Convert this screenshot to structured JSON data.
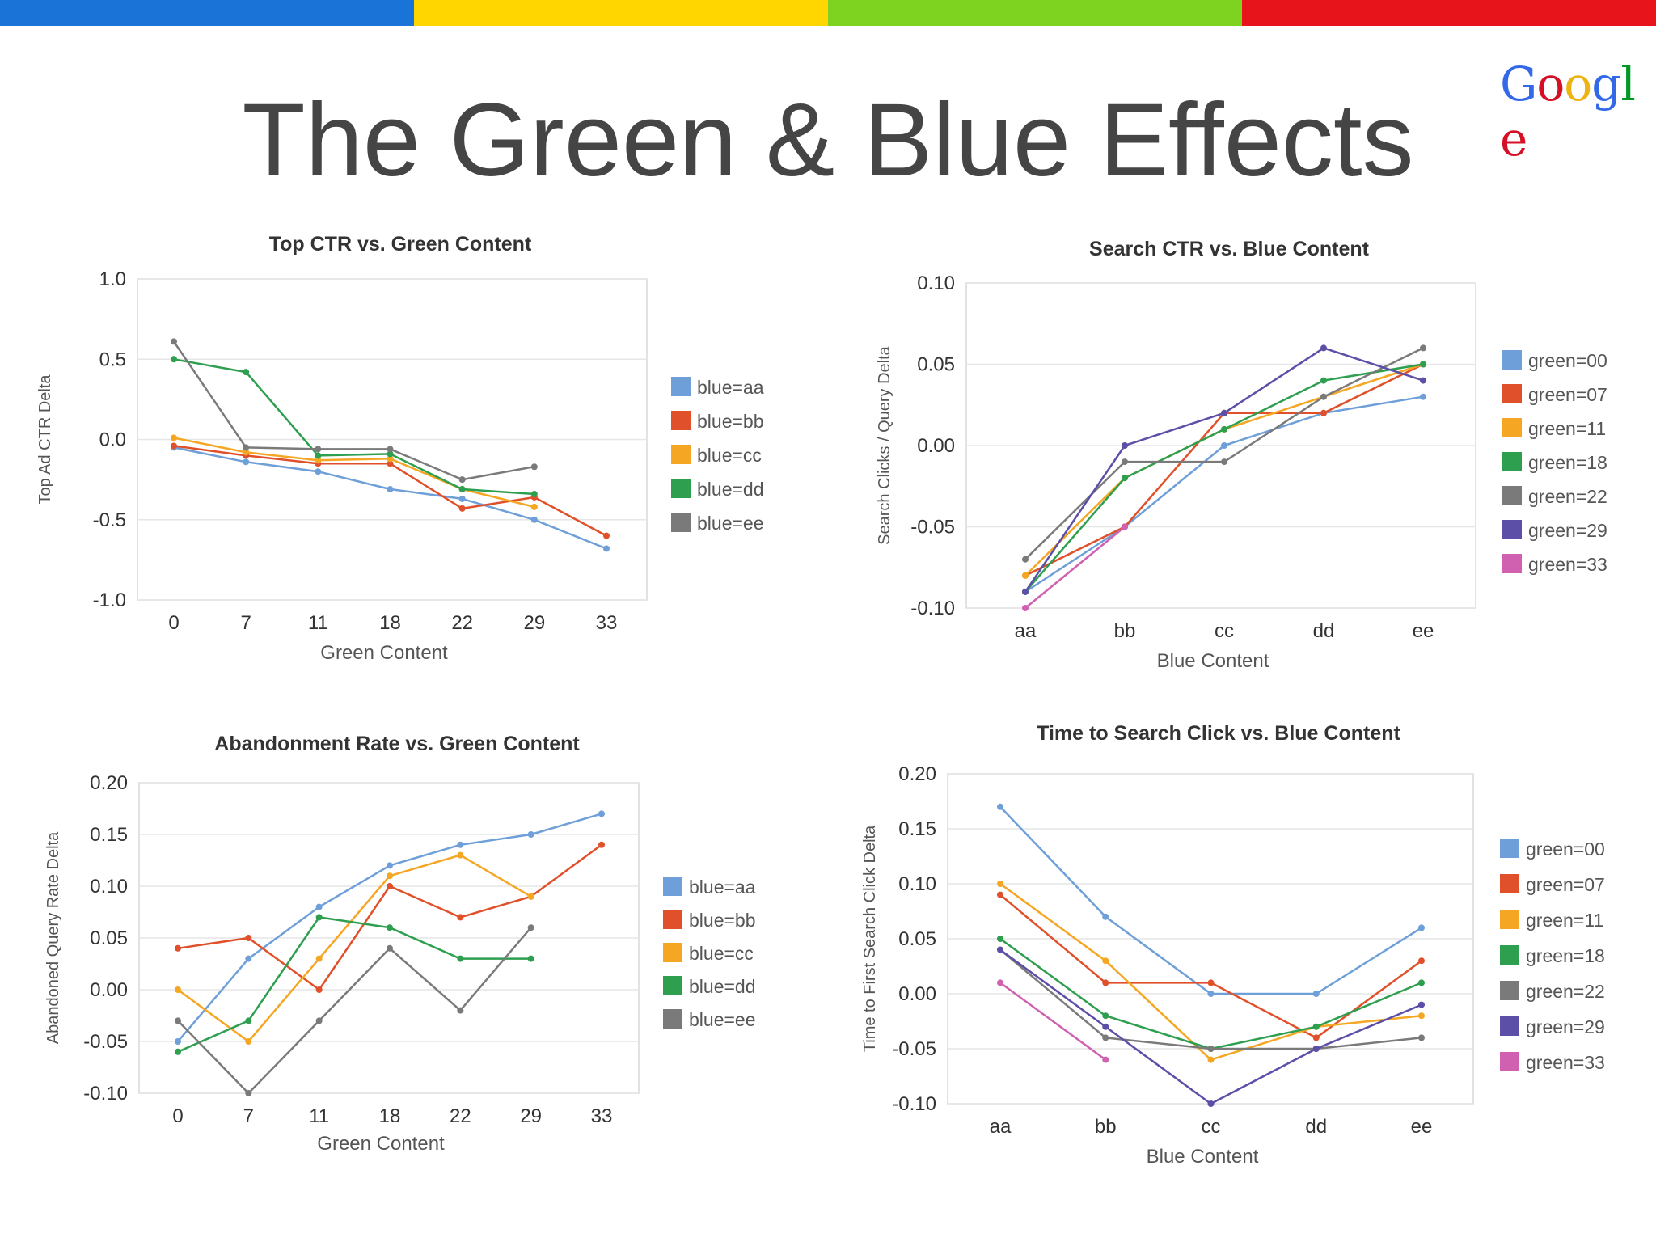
{
  "slide": {
    "title": "The Green & Blue Effects",
    "logo": "Google",
    "logo_colors": [
      "#3369e8",
      "#d50f25",
      "#eeb211",
      "#3369e8",
      "#009925",
      "#d50f25"
    ],
    "topbar_colors": [
      "#1a73d6",
      "#ffd600",
      "#7ed321",
      "#e8141c"
    ]
  },
  "chart_data": [
    {
      "type": "line",
      "title": "Top CTR vs. Green Content",
      "xlabel": "Green Content",
      "ylabel": "Top Ad CTR Delta",
      "categories": [
        "0",
        "7",
        "11",
        "18",
        "22",
        "29",
        "33"
      ],
      "ylim": [
        -1.0,
        1.0
      ],
      "yticks": [
        1.0,
        0.5,
        0.0,
        -0.5,
        -1.0
      ],
      "ytick_labels": [
        "1.0",
        "0.5",
        "0.0",
        "-0.5",
        "-1.0"
      ],
      "legend": "right",
      "series": [
        {
          "name": "blue=aa",
          "color": "#6f9fd8",
          "values": [
            -0.05,
            -0.14,
            -0.2,
            -0.31,
            -0.37,
            -0.5,
            -0.68
          ]
        },
        {
          "name": "blue=bb",
          "color": "#e0502a",
          "values": [
            -0.04,
            -0.1,
            -0.15,
            -0.15,
            -0.43,
            -0.36,
            -0.6
          ]
        },
        {
          "name": "blue=cc",
          "color": "#f5a623",
          "values": [
            0.01,
            -0.08,
            -0.13,
            -0.12,
            -0.31,
            -0.42,
            null
          ]
        },
        {
          "name": "blue=dd",
          "color": "#2e9e4f",
          "values": [
            0.5,
            0.42,
            -0.1,
            -0.09,
            -0.31,
            -0.34,
            null
          ]
        },
        {
          "name": "blue=ee",
          "color": "#7a7a7a",
          "values": [
            0.61,
            -0.05,
            -0.06,
            -0.06,
            -0.25,
            -0.17,
            null
          ]
        }
      ]
    },
    {
      "type": "line",
      "title": "Search CTR vs. Blue Content",
      "xlabel": "Blue Content",
      "ylabel": "Search Clicks / Query Delta",
      "categories": [
        "aa",
        "bb",
        "cc",
        "dd",
        "ee"
      ],
      "ylim": [
        -0.1,
        0.1
      ],
      "yticks": [
        0.1,
        0.05,
        0.0,
        -0.05,
        -0.1
      ],
      "ytick_labels": [
        "0.10",
        "0.05",
        "0.00",
        "-0.05",
        "-0.10"
      ],
      "legend": "right",
      "series": [
        {
          "name": "green=00",
          "color": "#6f9fd8",
          "values": [
            -0.09,
            -0.05,
            0.0,
            0.02,
            0.03
          ]
        },
        {
          "name": "green=07",
          "color": "#e0502a",
          "values": [
            -0.08,
            -0.05,
            0.02,
            0.02,
            0.05
          ]
        },
        {
          "name": "green=11",
          "color": "#f5a623",
          "values": [
            -0.08,
            -0.02,
            0.01,
            0.03,
            0.05
          ]
        },
        {
          "name": "green=18",
          "color": "#2e9e4f",
          "values": [
            -0.09,
            -0.02,
            0.01,
            0.04,
            0.05
          ]
        },
        {
          "name": "green=22",
          "color": "#7a7a7a",
          "values": [
            -0.07,
            -0.01,
            -0.01,
            0.03,
            0.06
          ]
        },
        {
          "name": "green=29",
          "color": "#5b4fa8",
          "values": [
            -0.09,
            0.0,
            0.02,
            0.06,
            0.04
          ]
        },
        {
          "name": "green=33",
          "color": "#d060b0",
          "values": [
            -0.1,
            -0.05,
            null,
            null,
            null
          ]
        }
      ]
    },
    {
      "type": "line",
      "title": "Abandonment Rate vs. Green Content",
      "xlabel": "Green Content",
      "ylabel": "Abandoned Query Rate Delta",
      "categories": [
        "0",
        "7",
        "11",
        "18",
        "22",
        "29",
        "33"
      ],
      "ylim": [
        -0.1,
        0.2
      ],
      "yticks": [
        0.2,
        0.15,
        0.1,
        0.05,
        0.0,
        -0.05,
        -0.1
      ],
      "ytick_labels": [
        "0.20",
        "0.15",
        "0.10",
        "0.05",
        "0.00",
        "-0.05",
        "-0.10"
      ],
      "legend": "right",
      "series": [
        {
          "name": "blue=aa",
          "color": "#6f9fd8",
          "values": [
            -0.05,
            0.03,
            0.08,
            0.12,
            0.14,
            0.15,
            0.17
          ]
        },
        {
          "name": "blue=bb",
          "color": "#e0502a",
          "values": [
            0.04,
            0.05,
            0.0,
            0.1,
            0.07,
            0.09,
            0.14
          ]
        },
        {
          "name": "blue=cc",
          "color": "#f5a623",
          "values": [
            0.0,
            -0.05,
            0.03,
            0.11,
            0.13,
            0.09,
            null
          ]
        },
        {
          "name": "blue=dd",
          "color": "#2e9e4f",
          "values": [
            -0.06,
            -0.03,
            0.07,
            0.06,
            0.03,
            0.03,
            null
          ]
        },
        {
          "name": "blue=ee",
          "color": "#7a7a7a",
          "values": [
            -0.03,
            -0.1,
            -0.03,
            0.04,
            -0.02,
            0.06,
            null
          ]
        }
      ]
    },
    {
      "type": "line",
      "title": "Time to Search Click vs. Blue Content",
      "xlabel": "Blue Content",
      "ylabel": "Time to First Search Click Delta",
      "categories": [
        "aa",
        "bb",
        "cc",
        "dd",
        "ee"
      ],
      "ylim": [
        -0.1,
        0.2
      ],
      "yticks": [
        0.2,
        0.15,
        0.1,
        0.05,
        0.0,
        -0.05,
        -0.1
      ],
      "ytick_labels": [
        "0.20",
        "0.15",
        "0.10",
        "0.05",
        "0.00",
        "-0.05",
        "-0.10"
      ],
      "legend": "right",
      "series": [
        {
          "name": "green=00",
          "color": "#6f9fd8",
          "values": [
            0.17,
            0.07,
            0.0,
            0.0,
            0.06
          ]
        },
        {
          "name": "green=07",
          "color": "#e0502a",
          "values": [
            0.09,
            0.01,
            0.01,
            -0.04,
            0.03
          ]
        },
        {
          "name": "green=11",
          "color": "#f5a623",
          "values": [
            0.1,
            0.03,
            -0.06,
            -0.03,
            -0.02
          ]
        },
        {
          "name": "green=18",
          "color": "#2e9e4f",
          "values": [
            0.05,
            -0.02,
            -0.05,
            -0.03,
            0.01
          ]
        },
        {
          "name": "green=22",
          "color": "#7a7a7a",
          "values": [
            0.04,
            -0.04,
            -0.05,
            -0.05,
            -0.04
          ]
        },
        {
          "name": "green=29",
          "color": "#5b4fa8",
          "values": [
            0.04,
            -0.03,
            -0.1,
            -0.05,
            -0.01
          ]
        },
        {
          "name": "green=33",
          "color": "#d060b0",
          "values": [
            0.01,
            -0.06,
            null,
            null,
            null
          ]
        }
      ]
    }
  ]
}
